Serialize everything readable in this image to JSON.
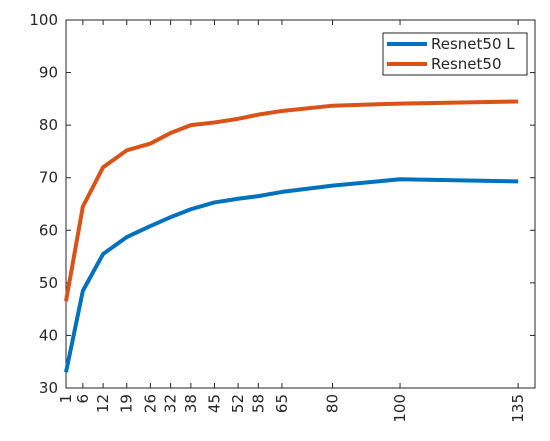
{
  "chart_data": {
    "type": "line",
    "x": [
      1,
      6,
      12,
      19,
      26,
      32,
      38,
      45,
      52,
      58,
      65,
      80,
      100,
      135
    ],
    "series": [
      {
        "name": "Resnet50 L",
        "color": "#0072bd",
        "values": [
          33,
          48.5,
          55.5,
          58.7,
          60.8,
          62.5,
          64,
          65.3,
          66,
          66.5,
          67.3,
          68.5,
          69.7,
          69.3
        ]
      },
      {
        "name": "Resnet50",
        "color": "#d95319",
        "values": [
          46.5,
          64.5,
          72,
          75.2,
          76.5,
          78.5,
          80,
          80.5,
          81.2,
          82,
          82.7,
          83.7,
          84.1,
          84.5
        ]
      }
    ],
    "xlim": [
      1,
      140
    ],
    "xticks": [
      1,
      6,
      12,
      19,
      26,
      32,
      38,
      45,
      52,
      58,
      65,
      80,
      100,
      135
    ],
    "ylim": [
      30,
      100
    ],
    "yticks": [
      30,
      40,
      50,
      60,
      70,
      80,
      90,
      100
    ],
    "legend": "top-right"
  }
}
